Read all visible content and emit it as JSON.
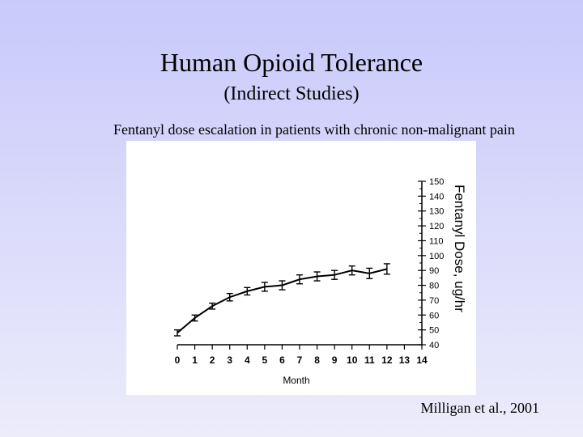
{
  "slide": {
    "title": "Human Opioid Tolerance",
    "subtitle": "(Indirect Studies)",
    "caption": "Fentanyl dose escalation in patients with chronic non-malignant pain",
    "citation": "Milligan et al., 2001"
  },
  "colors": {
    "background_top": "#c9c9fb",
    "background_bottom": "#ececfb",
    "chart_background": "#ffffff",
    "line": "#000000"
  },
  "chart_data": {
    "type": "line",
    "xlabel": "Month",
    "ylabel": "Fentanyl Dose, ug/hr",
    "y_axis_side": "right",
    "xlim": [
      0,
      14
    ],
    "ylim": [
      40,
      150
    ],
    "x_ticks": [
      0,
      1,
      2,
      3,
      4,
      5,
      6,
      7,
      8,
      9,
      10,
      11,
      12,
      13,
      14
    ],
    "y_ticks": [
      40,
      50,
      60,
      70,
      80,
      90,
      100,
      110,
      120,
      130,
      140,
      150
    ],
    "grid": false,
    "legend": "none",
    "series": [
      {
        "x": [
          0,
          1,
          2,
          3,
          4,
          5,
          6,
          7,
          8,
          9,
          10,
          11,
          12
        ],
        "y": [
          48,
          58,
          66,
          72,
          76,
          79,
          80,
          84,
          86,
          87,
          90,
          88,
          91
        ],
        "error": [
          2,
          2,
          2,
          2.5,
          2.5,
          3,
          3,
          3,
          3,
          3,
          3,
          3.5,
          3.5
        ]
      }
    ]
  }
}
